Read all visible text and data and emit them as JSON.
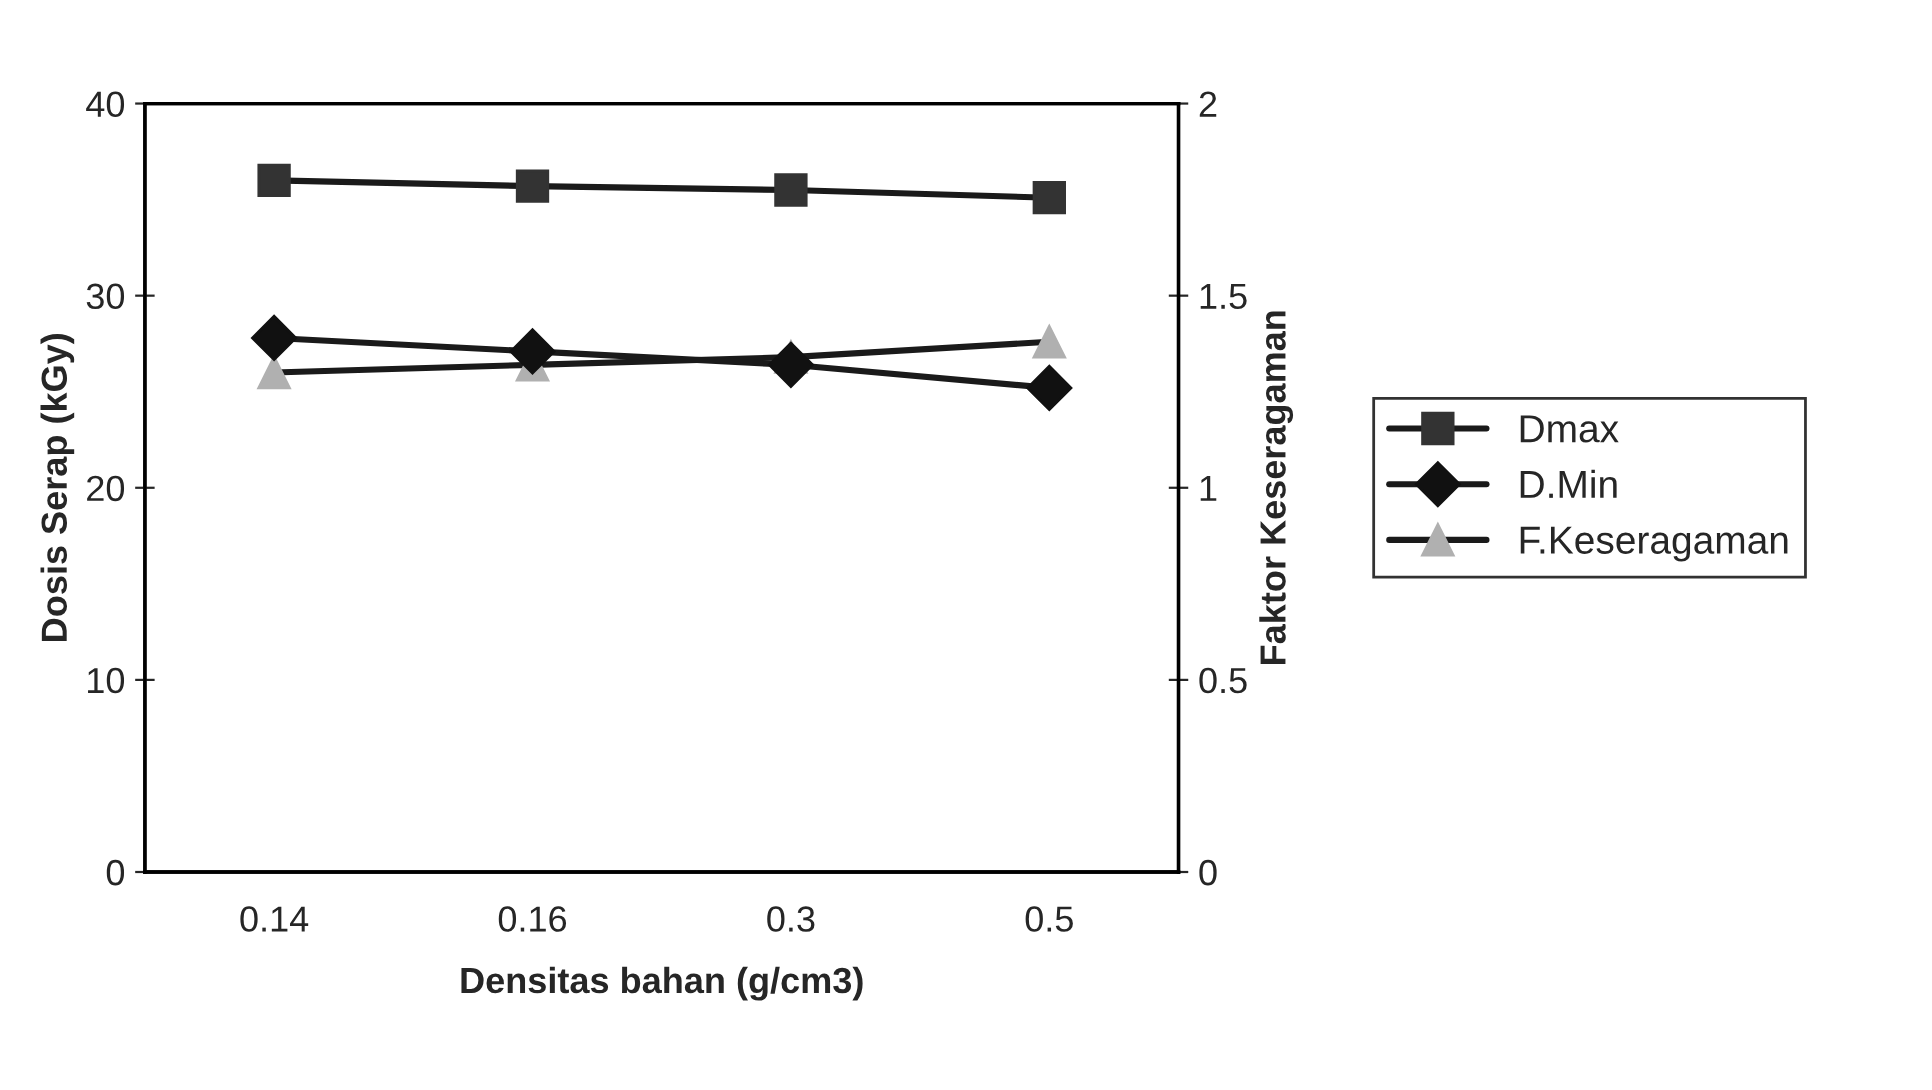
{
  "chart_data": {
    "type": "line",
    "xlabel": "Densitas bahan (g/cm3)",
    "ylabel": "Dosis Serap (kGy)",
    "y2label": "Faktor Keseragaman",
    "categories": [
      "0.14",
      "0.16",
      "0.3",
      "0.5"
    ],
    "series": [
      {
        "name": "Dmax",
        "color": "#333333",
        "marker": "square",
        "values": [
          36,
          35.7,
          35.5,
          35.1
        ]
      },
      {
        "name": "D.Min",
        "color": "#111111",
        "marker": "diamond",
        "values": [
          27.8,
          27.1,
          26.4,
          25.2
        ]
      },
      {
        "name": "F.Keseragaman",
        "color": "#b0b0b0",
        "marker": "triangle",
        "axis": "y2",
        "values": [
          1.3,
          1.32,
          1.34,
          1.38
        ]
      }
    ],
    "ylim": [
      0,
      40
    ],
    "yticks": [
      0,
      10,
      20,
      30,
      40
    ],
    "y2lim": [
      0,
      2
    ],
    "y2ticks": [
      0,
      0.5,
      1,
      1.5,
      2
    ],
    "grid": false,
    "legend": "right",
    "line_style": "solid"
  }
}
